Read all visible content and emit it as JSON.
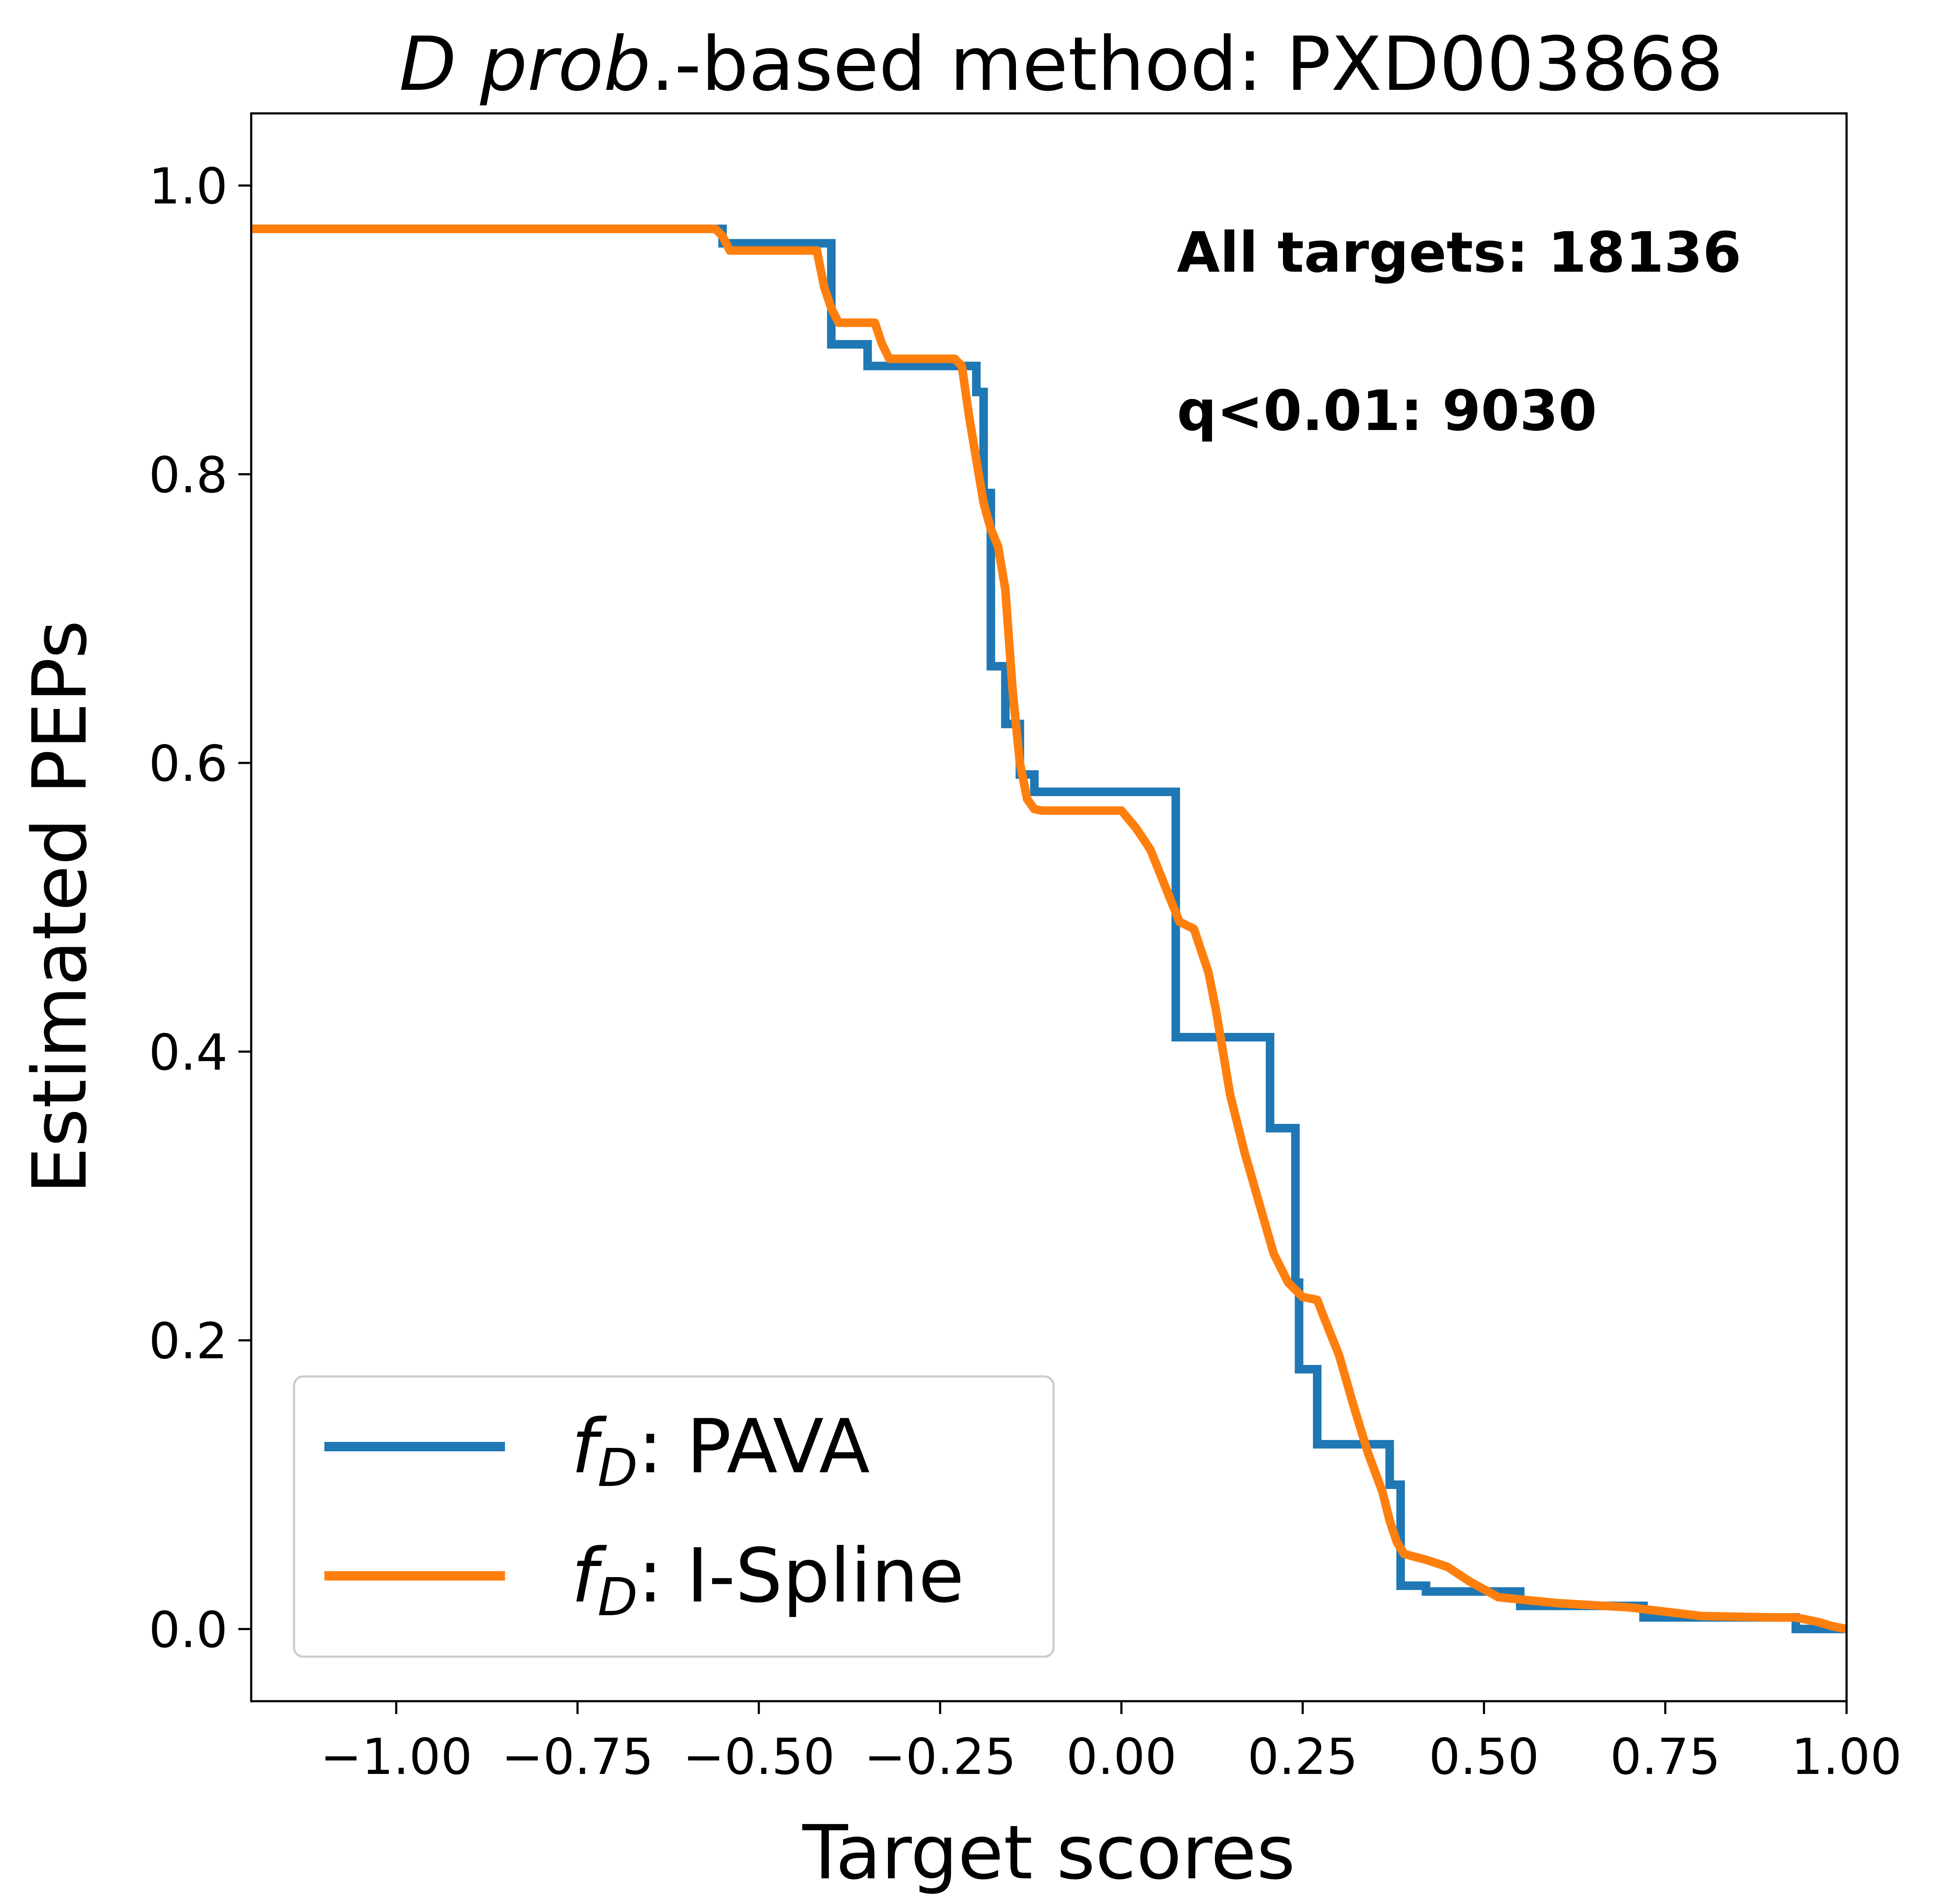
{
  "chart_data": {
    "type": "line",
    "title": {
      "italic_part": "D prob",
      "rest": ".-based method: PXD003868"
    },
    "xlabel": "Target scores",
    "ylabel": "Estimated PEPs",
    "xlim": [
      -1.2,
      1.0
    ],
    "ylim": [
      -0.05,
      1.05
    ],
    "x_ticks": [
      -1.0,
      -0.75,
      -0.5,
      -0.25,
      0.0,
      0.25,
      0.5,
      0.75,
      1.0
    ],
    "x_tick_labels": [
      "−1.00",
      "−0.75",
      "−0.50",
      "−0.25",
      "0.00",
      "0.25",
      "0.50",
      "0.75",
      "1.00"
    ],
    "y_ticks": [
      0.0,
      0.2,
      0.4,
      0.6,
      0.8,
      1.0
    ],
    "y_tick_labels": [
      "0.0",
      "0.2",
      "0.4",
      "0.6",
      "0.8",
      "1.0"
    ],
    "grid": false,
    "legend_placement": "lower-left",
    "annotations": [
      "All targets: 18136",
      "q<0.01: 9030"
    ],
    "series": [
      {
        "name_math": "f",
        "name_sub": "D",
        "name_rest": ": PAVA",
        "color": "#1f77b4",
        "step": true,
        "x": [
          -1.2,
          -0.55,
          -0.55,
          -0.4,
          -0.4,
          -0.35,
          -0.35,
          -0.2,
          -0.2,
          -0.19,
          -0.19,
          -0.18,
          -0.18,
          -0.16,
          -0.16,
          -0.14,
          -0.14,
          -0.12,
          -0.12,
          0.075,
          0.075,
          0.205,
          0.205,
          0.24,
          0.24,
          0.245,
          0.245,
          0.27,
          0.27,
          0.3,
          0.3,
          0.37,
          0.37,
          0.385,
          0.385,
          0.42,
          0.42,
          0.55,
          0.55,
          0.72,
          0.72,
          0.93,
          0.93,
          1.0
        ],
        "y": [
          0.97,
          0.97,
          0.96,
          0.96,
          0.89,
          0.89,
          0.875,
          0.875,
          0.857,
          0.857,
          0.787,
          0.787,
          0.667,
          0.667,
          0.627,
          0.627,
          0.592,
          0.592,
          0.58,
          0.58,
          0.41,
          0.41,
          0.347,
          0.347,
          0.24,
          0.24,
          0.18,
          0.18,
          0.128,
          0.128,
          0.128,
          0.128,
          0.1,
          0.1,
          0.03,
          0.03,
          0.026,
          0.026,
          0.016,
          0.016,
          0.008,
          0.008,
          0.0,
          0.0
        ]
      },
      {
        "name_math": "f",
        "name_sub": "D",
        "name_rest": ": I-Spline",
        "color": "#ff7f0e",
        "step": false,
        "x": [
          -1.2,
          -0.56,
          -0.55,
          -0.54,
          -0.42,
          -0.41,
          -0.4,
          -0.39,
          -0.38,
          -0.34,
          -0.33,
          -0.32,
          -0.23,
          -0.22,
          -0.21,
          -0.2,
          -0.19,
          -0.18,
          -0.17,
          -0.16,
          -0.15,
          -0.14,
          -0.13,
          -0.12,
          -0.11,
          0.0,
          0.02,
          0.04,
          0.06,
          0.08,
          0.1,
          0.12,
          0.13,
          0.14,
          0.15,
          0.17,
          0.19,
          0.21,
          0.23,
          0.25,
          0.27,
          0.28,
          0.3,
          0.32,
          0.34,
          0.36,
          0.37,
          0.38,
          0.39,
          0.42,
          0.45,
          0.48,
          0.52,
          0.6,
          0.7,
          0.8,
          0.9,
          0.93,
          0.96,
          0.98,
          1.0
        ],
        "y": [
          0.97,
          0.97,
          0.965,
          0.955,
          0.955,
          0.93,
          0.915,
          0.905,
          0.905,
          0.905,
          0.89,
          0.88,
          0.88,
          0.875,
          0.84,
          0.81,
          0.78,
          0.762,
          0.75,
          0.72,
          0.65,
          0.6,
          0.575,
          0.568,
          0.567,
          0.567,
          0.555,
          0.54,
          0.515,
          0.49,
          0.485,
          0.455,
          0.43,
          0.4,
          0.37,
          0.33,
          0.295,
          0.26,
          0.24,
          0.23,
          0.228,
          0.215,
          0.19,
          0.155,
          0.122,
          0.095,
          0.075,
          0.06,
          0.052,
          0.048,
          0.043,
          0.033,
          0.022,
          0.018,
          0.015,
          0.009,
          0.008,
          0.008,
          0.005,
          0.002,
          0.0
        ]
      }
    ]
  }
}
